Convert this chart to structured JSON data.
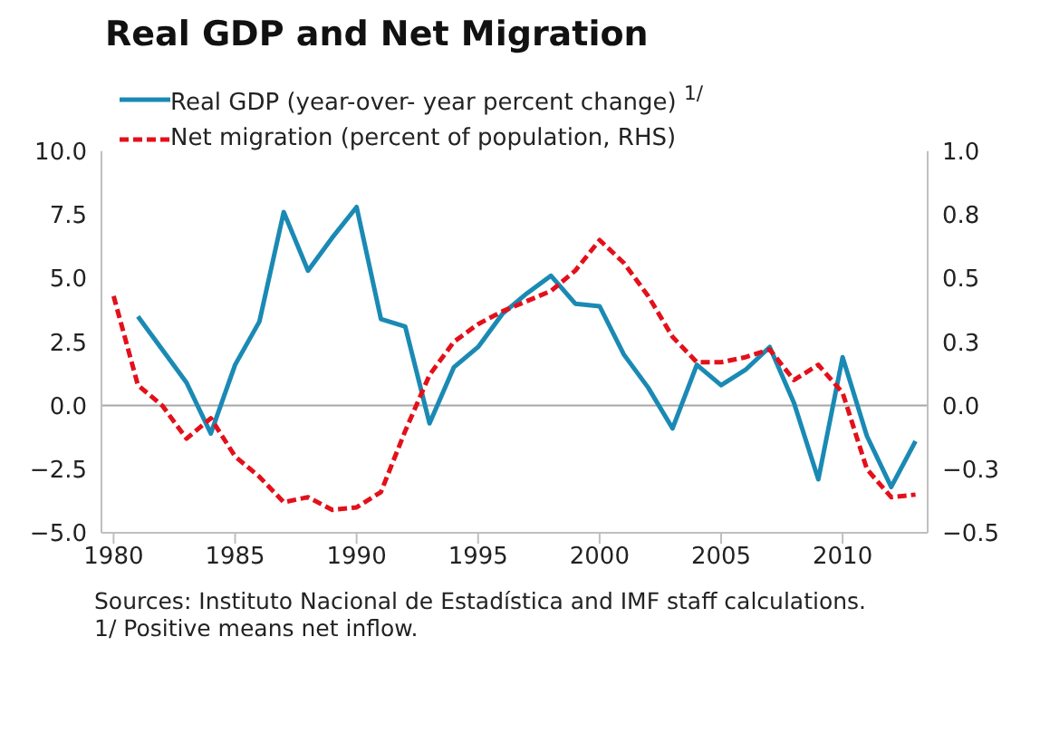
{
  "chart_data": {
    "type": "line",
    "title": "Real GDP and Net Migration",
    "x": [
      1980,
      1981,
      1982,
      1983,
      1984,
      1985,
      1986,
      1987,
      1988,
      1989,
      1990,
      1991,
      1992,
      1993,
      1994,
      1995,
      1996,
      1997,
      1998,
      1999,
      2000,
      2001,
      2002,
      2003,
      2004,
      2005,
      2006,
      2007,
      2008,
      2009,
      2010,
      2011,
      2012,
      2013
    ],
    "series": [
      {
        "name": "Real GDP (year-over- year percent change) $^{1/}$",
        "color": "#1a8ab4",
        "line_style": "solid",
        "values": [
          null,
          3.5,
          2.2,
          0.9,
          -1.1,
          1.6,
          3.3,
          7.6,
          5.3,
          6.6,
          7.8,
          3.4,
          3.1,
          -0.7,
          1.5,
          2.3,
          3.6,
          4.4,
          5.1,
          4.0,
          3.9,
          2.0,
          0.7,
          -0.9,
          1.6,
          0.8,
          1.4,
          2.3,
          0.1,
          -2.9,
          1.9,
          -1.2,
          -3.2,
          -1.4
        ]
      },
      {
        "name": "Net migration (percent of population, RHS)",
        "color": "#e3101b",
        "line_style": "dashed",
        "axis": "y2",
        "values": [
          0.43,
          0.08,
          0.0,
          -0.13,
          -0.05,
          -0.2,
          -0.28,
          -0.38,
          -0.36,
          -0.41,
          -0.4,
          -0.34,
          -0.1,
          0.12,
          0.25,
          0.32,
          0.37,
          0.41,
          0.45,
          0.53,
          0.65,
          0.56,
          0.43,
          0.27,
          0.17,
          0.17,
          0.19,
          0.22,
          0.1,
          0.16,
          0.05,
          -0.25,
          -0.36,
          -0.35
        ]
      }
    ],
    "xlim": [
      1979.5,
      2013.5
    ],
    "xticks": [
      1980,
      1985,
      1990,
      1995,
      2000,
      2005,
      2010
    ],
    "ylim": [
      -5,
      10
    ],
    "yticks": [
      {
        "value": -5,
        "label": "−5.0"
      },
      {
        "value": -2.5,
        "label": "−2.5"
      },
      {
        "value": 0,
        "label": "0.0"
      },
      {
        "value": 2.5,
        "label": "2.5"
      },
      {
        "value": 5,
        "label": "5.0"
      },
      {
        "value": 7.5,
        "label": "7.5"
      },
      {
        "value": 10,
        "label": "10.0"
      }
    ],
    "y2lim": [
      -0.5,
      1
    ],
    "y2ticks": [
      {
        "value": -0.5,
        "label": "−0.5"
      },
      {
        "value": -0.25,
        "label": "−0.3"
      },
      {
        "value": 0,
        "label": "0.0"
      },
      {
        "value": 0.25,
        "label": "0.3"
      },
      {
        "value": 0.5,
        "label": "0.5"
      },
      {
        "value": 0.75,
        "label": "0.8"
      },
      {
        "value": 1,
        "label": "1.0"
      }
    ],
    "ref_lines": [
      {
        "axis": "y",
        "value": 0,
        "color": "#a6a6a6"
      }
    ],
    "grid": false,
    "legend": "top left",
    "marker": "none",
    "annotations": [
      "Sources: Instituto Nacional de Estadística and IMF staff calculations.",
      "1/ Positive means net inflow."
    ]
  }
}
